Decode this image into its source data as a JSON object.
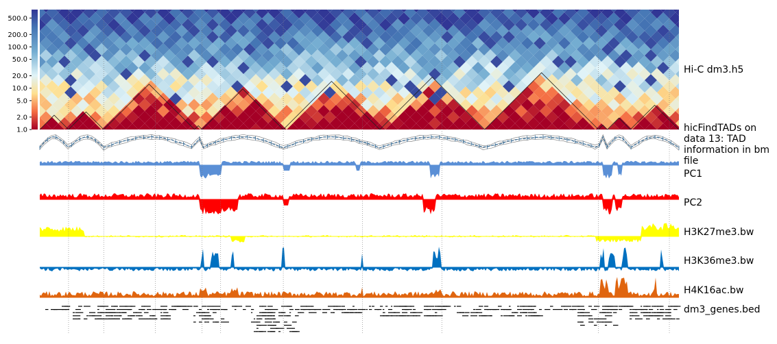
{
  "chart_data": {
    "type": "heatmap",
    "title": "",
    "tracks": [
      {
        "name": "Hi-C dm3.h5",
        "kind": "hic-triangle"
      },
      {
        "name": "hicFindTADs on data 13: TAD information in bm file",
        "kind": "tad-score"
      },
      {
        "name": "PC1",
        "kind": "bigwig",
        "color": "#5a8fd6"
      },
      {
        "name": "PC2",
        "kind": "bigwig",
        "color": "#ff0000"
      },
      {
        "name": "H3K27me3.bw",
        "kind": "bigwig",
        "color": "#ffff00"
      },
      {
        "name": "H3K36me3.bw",
        "kind": "bigwig",
        "color": "#0070c0"
      },
      {
        "name": "H4K16ac.bw",
        "kind": "bigwig",
        "color": "#e0650f"
      },
      {
        "name": "dm3_genes.bed",
        "kind": "bed"
      }
    ],
    "colorbar": {
      "scale": "log",
      "ticks": [
        "500.0",
        "200.0",
        "100.0",
        "50.0",
        "20.0",
        "10.0",
        "5.0",
        "2.0",
        "1.0"
      ],
      "tick_values": [
        500,
        200,
        100,
        50,
        20,
        10,
        5,
        2,
        1
      ],
      "range": [
        1,
        800
      ]
    },
    "tad_boundaries": [
      0.045,
      0.1,
      0.242,
      0.254,
      0.381,
      0.532,
      0.696,
      0.874,
      0.888,
      0.924,
      1.0
    ]
  }
}
